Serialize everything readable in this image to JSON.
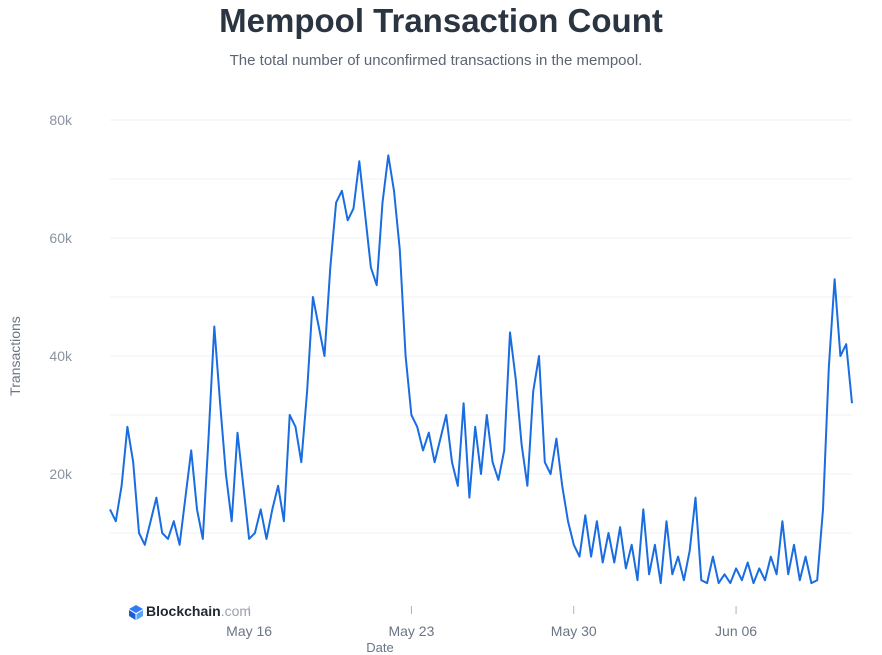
{
  "chart_data": {
    "type": "line",
    "title": "Mempool Transaction Count",
    "subtitle": "The total number of unconfirmed transactions in the mempool.",
    "ylabel": "Transactions",
    "xlabel": "Date",
    "ylim": [
      0,
      80000
    ],
    "y_ticks": [
      20000,
      40000,
      60000,
      80000
    ],
    "y_tick_labels": [
      "20k",
      "40k",
      "60k",
      "80k"
    ],
    "x_range": [
      "2023-05-10",
      "2023-06-11"
    ],
    "x_ticks": [
      "2023-05-16",
      "2023-05-23",
      "2023-05-30",
      "2023-06-06"
    ],
    "x_tick_labels": [
      "May 16",
      "May 23",
      "May 30",
      "Jun 06"
    ],
    "grid": true,
    "series": [
      {
        "color": "#1a6de0",
        "points": [
          [
            "2023-05-10T00:00",
            14000
          ],
          [
            "2023-05-10T06:00",
            12000
          ],
          [
            "2023-05-10T12:00",
            18000
          ],
          [
            "2023-05-10T18:00",
            28000
          ],
          [
            "2023-05-11T00:00",
            22000
          ],
          [
            "2023-05-11T06:00",
            10000
          ],
          [
            "2023-05-11T12:00",
            8000
          ],
          [
            "2023-05-11T18:00",
            12000
          ],
          [
            "2023-05-12T00:00",
            16000
          ],
          [
            "2023-05-12T06:00",
            10000
          ],
          [
            "2023-05-12T12:00",
            9000
          ],
          [
            "2023-05-12T18:00",
            12000
          ],
          [
            "2023-05-13T00:00",
            8000
          ],
          [
            "2023-05-13T06:00",
            16000
          ],
          [
            "2023-05-13T12:00",
            24000
          ],
          [
            "2023-05-13T18:00",
            14000
          ],
          [
            "2023-05-14T00:00",
            9000
          ],
          [
            "2023-05-14T06:00",
            26000
          ],
          [
            "2023-05-14T12:00",
            45000
          ],
          [
            "2023-05-14T18:00",
            32000
          ],
          [
            "2023-05-15T00:00",
            20000
          ],
          [
            "2023-05-15T06:00",
            12000
          ],
          [
            "2023-05-15T12:00",
            27000
          ],
          [
            "2023-05-15T18:00",
            18000
          ],
          [
            "2023-05-16T00:00",
            9000
          ],
          [
            "2023-05-16T06:00",
            10000
          ],
          [
            "2023-05-16T12:00",
            14000
          ],
          [
            "2023-05-16T18:00",
            9000
          ],
          [
            "2023-05-17T00:00",
            14000
          ],
          [
            "2023-05-17T06:00",
            18000
          ],
          [
            "2023-05-17T12:00",
            12000
          ],
          [
            "2023-05-17T18:00",
            30000
          ],
          [
            "2023-05-18T00:00",
            28000
          ],
          [
            "2023-05-18T06:00",
            22000
          ],
          [
            "2023-05-18T12:00",
            34000
          ],
          [
            "2023-05-18T18:00",
            50000
          ],
          [
            "2023-05-19T00:00",
            45000
          ],
          [
            "2023-05-19T06:00",
            40000
          ],
          [
            "2023-05-19T12:00",
            55000
          ],
          [
            "2023-05-19T18:00",
            66000
          ],
          [
            "2023-05-20T00:00",
            68000
          ],
          [
            "2023-05-20T06:00",
            63000
          ],
          [
            "2023-05-20T12:00",
            65000
          ],
          [
            "2023-05-20T18:00",
            73000
          ],
          [
            "2023-05-21T00:00",
            64000
          ],
          [
            "2023-05-21T06:00",
            55000
          ],
          [
            "2023-05-21T12:00",
            52000
          ],
          [
            "2023-05-21T18:00",
            66000
          ],
          [
            "2023-05-22T00:00",
            74000
          ],
          [
            "2023-05-22T06:00",
            68000
          ],
          [
            "2023-05-22T12:00",
            58000
          ],
          [
            "2023-05-22T18:00",
            40000
          ],
          [
            "2023-05-23T00:00",
            30000
          ],
          [
            "2023-05-23T06:00",
            28000
          ],
          [
            "2023-05-23T12:00",
            24000
          ],
          [
            "2023-05-23T18:00",
            27000
          ],
          [
            "2023-05-24T00:00",
            22000
          ],
          [
            "2023-05-24T06:00",
            26000
          ],
          [
            "2023-05-24T12:00",
            30000
          ],
          [
            "2023-05-24T18:00",
            22000
          ],
          [
            "2023-05-25T00:00",
            18000
          ],
          [
            "2023-05-25T06:00",
            32000
          ],
          [
            "2023-05-25T12:00",
            16000
          ],
          [
            "2023-05-25T18:00",
            28000
          ],
          [
            "2023-05-26T00:00",
            20000
          ],
          [
            "2023-05-26T06:00",
            30000
          ],
          [
            "2023-05-26T12:00",
            22000
          ],
          [
            "2023-05-26T18:00",
            19000
          ],
          [
            "2023-05-27T00:00",
            24000
          ],
          [
            "2023-05-27T06:00",
            44000
          ],
          [
            "2023-05-27T12:00",
            36000
          ],
          [
            "2023-05-27T18:00",
            25000
          ],
          [
            "2023-05-28T00:00",
            18000
          ],
          [
            "2023-05-28T06:00",
            34000
          ],
          [
            "2023-05-28T12:00",
            40000
          ],
          [
            "2023-05-28T18:00",
            22000
          ],
          [
            "2023-05-29T00:00",
            20000
          ],
          [
            "2023-05-29T06:00",
            26000
          ],
          [
            "2023-05-29T12:00",
            18000
          ],
          [
            "2023-05-29T18:00",
            12000
          ],
          [
            "2023-05-30T00:00",
            8000
          ],
          [
            "2023-05-30T06:00",
            6000
          ],
          [
            "2023-05-30T12:00",
            13000
          ],
          [
            "2023-05-30T18:00",
            6000
          ],
          [
            "2023-05-31T00:00",
            12000
          ],
          [
            "2023-05-31T06:00",
            5000
          ],
          [
            "2023-05-31T12:00",
            10000
          ],
          [
            "2023-05-31T18:00",
            5000
          ],
          [
            "2023-06-01T00:00",
            11000
          ],
          [
            "2023-06-01T06:00",
            4000
          ],
          [
            "2023-06-01T12:00",
            8000
          ],
          [
            "2023-06-01T18:00",
            2000
          ],
          [
            "2023-06-02T00:00",
            14000
          ],
          [
            "2023-06-02T06:00",
            3000
          ],
          [
            "2023-06-02T12:00",
            8000
          ],
          [
            "2023-06-02T18:00",
            1500
          ],
          [
            "2023-06-03T00:00",
            12000
          ],
          [
            "2023-06-03T06:00",
            3000
          ],
          [
            "2023-06-03T12:00",
            6000
          ],
          [
            "2023-06-03T18:00",
            2000
          ],
          [
            "2023-06-04T00:00",
            7000
          ],
          [
            "2023-06-04T06:00",
            16000
          ],
          [
            "2023-06-04T12:00",
            2000
          ],
          [
            "2023-06-04T18:00",
            1500
          ],
          [
            "2023-06-05T00:00",
            6000
          ],
          [
            "2023-06-05T06:00",
            1500
          ],
          [
            "2023-06-05T12:00",
            3000
          ],
          [
            "2023-06-05T18:00",
            1500
          ],
          [
            "2023-06-06T00:00",
            4000
          ],
          [
            "2023-06-06T06:00",
            2000
          ],
          [
            "2023-06-06T12:00",
            5000
          ],
          [
            "2023-06-06T18:00",
            1500
          ],
          [
            "2023-06-07T00:00",
            4000
          ],
          [
            "2023-06-07T06:00",
            2000
          ],
          [
            "2023-06-07T12:00",
            6000
          ],
          [
            "2023-06-07T18:00",
            3000
          ],
          [
            "2023-06-08T00:00",
            12000
          ],
          [
            "2023-06-08T06:00",
            3000
          ],
          [
            "2023-06-08T12:00",
            8000
          ],
          [
            "2023-06-08T18:00",
            2000
          ],
          [
            "2023-06-09T00:00",
            6000
          ],
          [
            "2023-06-09T06:00",
            1500
          ],
          [
            "2023-06-09T12:00",
            2000
          ],
          [
            "2023-06-09T18:00",
            14000
          ],
          [
            "2023-06-10T00:00",
            38000
          ],
          [
            "2023-06-10T06:00",
            53000
          ],
          [
            "2023-06-10T12:00",
            40000
          ],
          [
            "2023-06-10T18:00",
            42000
          ],
          [
            "2023-06-11T00:00",
            32000
          ]
        ]
      }
    ]
  },
  "brand": {
    "name": "Blockchain",
    "suffix": ".com"
  }
}
